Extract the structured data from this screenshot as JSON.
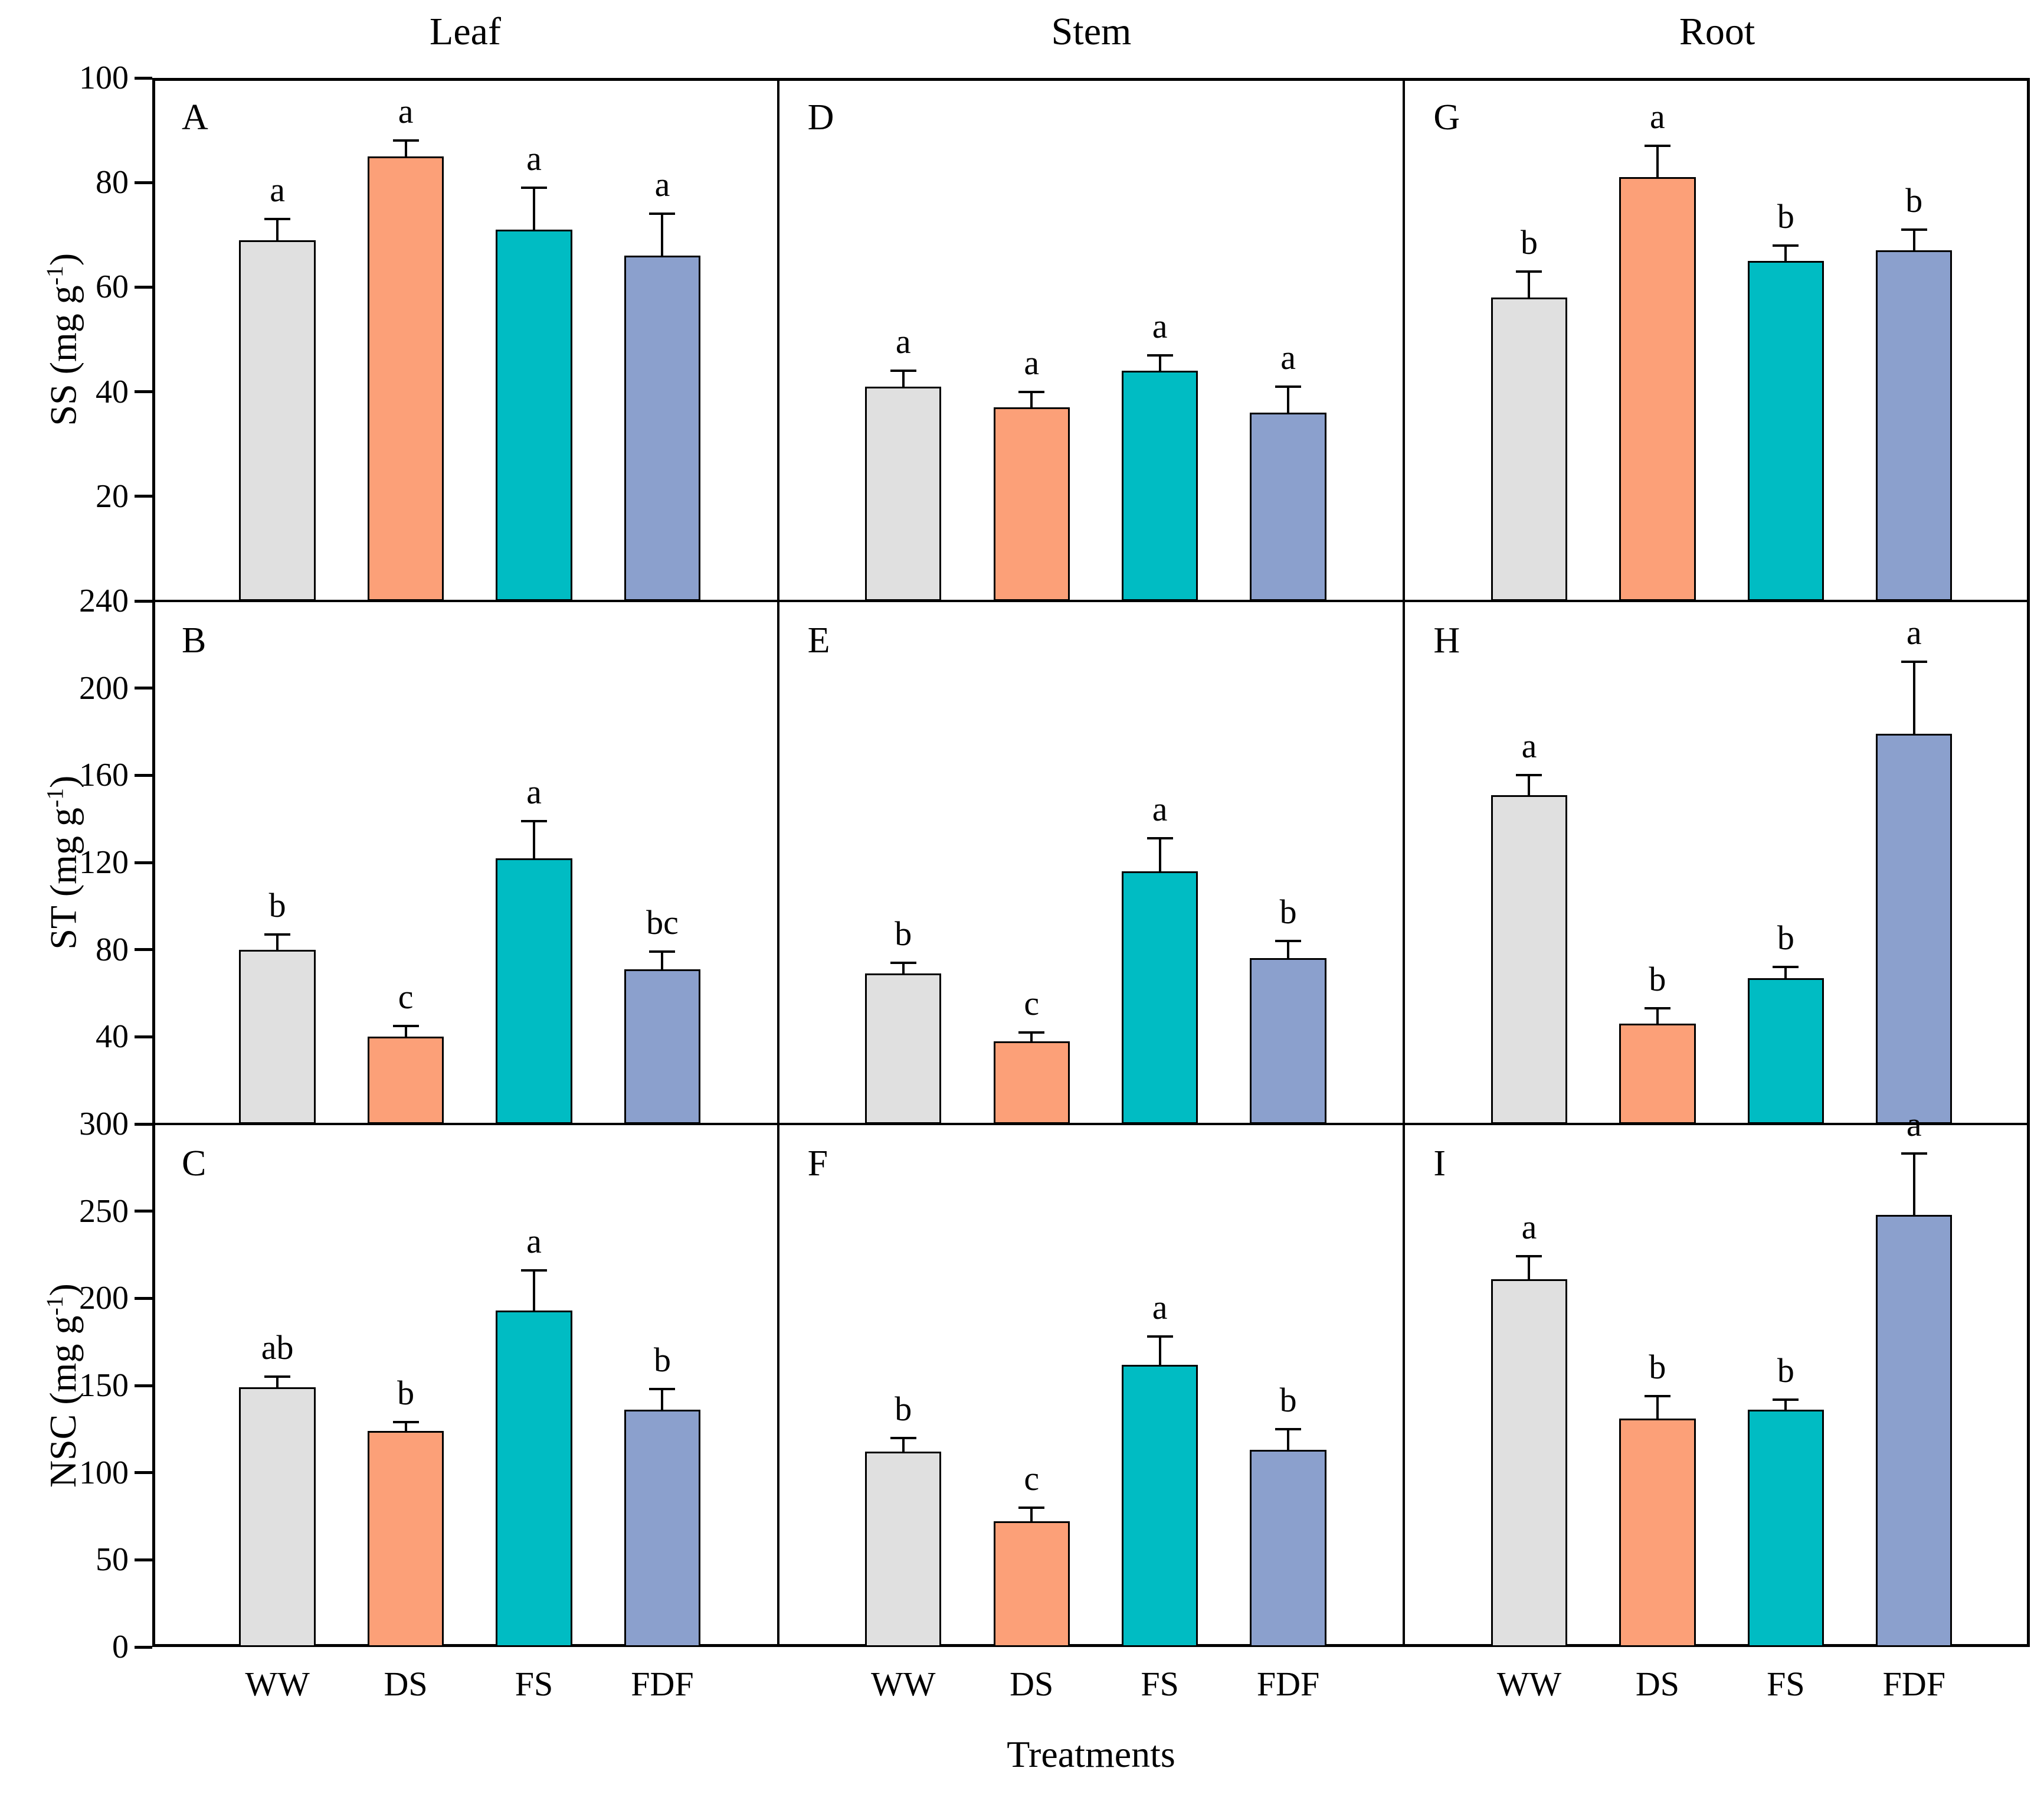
{
  "layout": {
    "column_titles": [
      "Leaf",
      "Stem",
      "Root"
    ],
    "x_axis_title": "Treatments",
    "categories": [
      "WW",
      "DS",
      "FS",
      "FDF"
    ],
    "row_ylabels": [
      "SS (mg g⁻¹)",
      "ST (mg g⁻¹)",
      "NSC (mg g⁻¹)"
    ],
    "colors": {
      "WW": "#E0E0E0",
      "DS": "#FCA078",
      "FS": "#00BCC3",
      "FDF": "#8BA0CD",
      "bar_border": "#000000",
      "axis": "#000000",
      "background": "#FFFFFF"
    }
  },
  "chart_data": [
    {
      "panel": "A",
      "organ": "Leaf",
      "measure": "SS",
      "type": "bar",
      "row": 0,
      "col": 0,
      "categories": [
        "WW",
        "DS",
        "FS",
        "FDF"
      ],
      "values": [
        69,
        85,
        71,
        66
      ],
      "errors": [
        4,
        3,
        8,
        8
      ],
      "sig_letters": [
        "a",
        "a",
        "a",
        "a"
      ],
      "ylabel": "SS (mg g⁻¹)",
      "ylim": [
        0,
        100
      ],
      "yticks": [
        100,
        80,
        60,
        40,
        20
      ]
    },
    {
      "panel": "D",
      "organ": "Stem",
      "measure": "SS",
      "type": "bar",
      "row": 0,
      "col": 1,
      "categories": [
        "WW",
        "DS",
        "FS",
        "FDF"
      ],
      "values": [
        41,
        37,
        44,
        36
      ],
      "errors": [
        3,
        3,
        3,
        5
      ],
      "sig_letters": [
        "a",
        "a",
        "a",
        "a"
      ],
      "ylabel": "SS (mg g⁻¹)",
      "ylim": [
        0,
        100
      ],
      "yticks": [
        100,
        80,
        60,
        40,
        20
      ]
    },
    {
      "panel": "G",
      "organ": "Root",
      "measure": "SS",
      "type": "bar",
      "row": 0,
      "col": 2,
      "categories": [
        "WW",
        "DS",
        "FS",
        "FDF"
      ],
      "values": [
        58,
        81,
        65,
        67
      ],
      "errors": [
        5,
        6,
        3,
        4
      ],
      "sig_letters": [
        "b",
        "a",
        "b",
        "b"
      ],
      "ylabel": "SS (mg g⁻¹)",
      "ylim": [
        0,
        100
      ],
      "yticks": [
        100,
        80,
        60,
        40,
        20
      ]
    },
    {
      "panel": "B",
      "organ": "Leaf",
      "measure": "ST",
      "type": "bar",
      "row": 1,
      "col": 0,
      "categories": [
        "WW",
        "DS",
        "FS",
        "FDF"
      ],
      "values": [
        80,
        40,
        122,
        71
      ],
      "errors": [
        7,
        5,
        17,
        8
      ],
      "sig_letters": [
        "b",
        "c",
        "a",
        "bc"
      ],
      "ylabel": "ST (mg g⁻¹)",
      "ylim": [
        0,
        240
      ],
      "yticks": [
        240,
        200,
        160,
        120,
        80,
        40
      ]
    },
    {
      "panel": "E",
      "organ": "Stem",
      "measure": "ST",
      "type": "bar",
      "row": 1,
      "col": 1,
      "categories": [
        "WW",
        "DS",
        "FS",
        "FDF"
      ],
      "values": [
        69,
        38,
        116,
        76
      ],
      "errors": [
        5,
        4,
        15,
        8
      ],
      "sig_letters": [
        "b",
        "c",
        "a",
        "b"
      ],
      "ylabel": "ST (mg g⁻¹)",
      "ylim": [
        0,
        240
      ],
      "yticks": [
        240,
        200,
        160,
        120,
        80,
        40
      ]
    },
    {
      "panel": "H",
      "organ": "Root",
      "measure": "ST",
      "type": "bar",
      "row": 1,
      "col": 2,
      "categories": [
        "WW",
        "DS",
        "FS",
        "FDF"
      ],
      "values": [
        151,
        46,
        67,
        179
      ],
      "errors": [
        9,
        7,
        5,
        33
      ],
      "sig_letters": [
        "a",
        "b",
        "b",
        "a"
      ],
      "ylabel": "ST (mg g⁻¹)",
      "ylim": [
        0,
        240
      ],
      "yticks": [
        240,
        200,
        160,
        120,
        80,
        40
      ]
    },
    {
      "panel": "C",
      "organ": "Leaf",
      "measure": "NSC",
      "type": "bar",
      "row": 2,
      "col": 0,
      "categories": [
        "WW",
        "DS",
        "FS",
        "FDF"
      ],
      "values": [
        149,
        124,
        193,
        136
      ],
      "errors": [
        6,
        5,
        23,
        12
      ],
      "sig_letters": [
        "ab",
        "b",
        "a",
        "b"
      ],
      "ylabel": "NSC (mg g⁻¹)",
      "ylim": [
        0,
        300
      ],
      "yticks": [
        300,
        250,
        200,
        150,
        100,
        50,
        0
      ]
    },
    {
      "panel": "F",
      "organ": "Stem",
      "measure": "NSC",
      "type": "bar",
      "row": 2,
      "col": 1,
      "categories": [
        "WW",
        "DS",
        "FS",
        "FDF"
      ],
      "values": [
        112,
        72,
        162,
        113
      ],
      "errors": [
        8,
        8,
        16,
        12
      ],
      "sig_letters": [
        "b",
        "c",
        "a",
        "b"
      ],
      "ylabel": "NSC (mg g⁻¹)",
      "ylim": [
        0,
        300
      ],
      "yticks": [
        300,
        250,
        200,
        150,
        100,
        50,
        0
      ]
    },
    {
      "panel": "I",
      "organ": "Root",
      "measure": "NSC",
      "type": "bar",
      "row": 2,
      "col": 2,
      "categories": [
        "WW",
        "DS",
        "FS",
        "FDF"
      ],
      "values": [
        211,
        131,
        136,
        248
      ],
      "errors": [
        13,
        13,
        6,
        35
      ],
      "sig_letters": [
        "a",
        "b",
        "b",
        "a"
      ],
      "ylabel": "NSC (mg g⁻¹)",
      "ylim": [
        0,
        300
      ],
      "yticks": [
        300,
        250,
        200,
        150,
        100,
        50,
        0
      ]
    }
  ]
}
